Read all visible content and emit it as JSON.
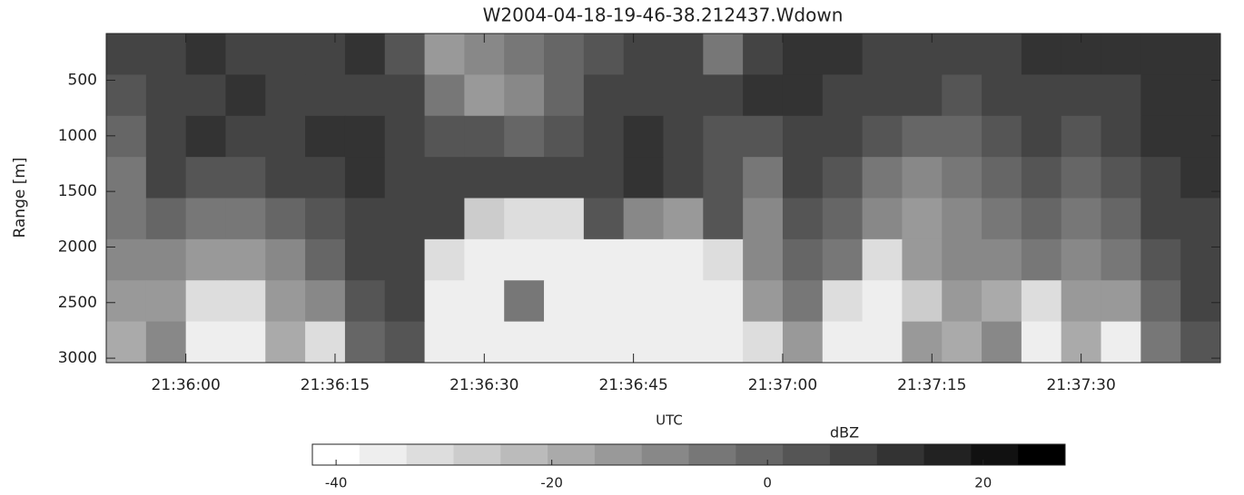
{
  "chart_data": {
    "type": "heatmap",
    "title": "W2004-04-18-19-46-38.212437.Wdown",
    "x_label": "UTC",
    "y_label": "Range [m]",
    "xlim": [
      77752,
      77864
    ],
    "xticks": [
      {
        "value": 77760,
        "label": "21:36:00"
      },
      {
        "value": 77775,
        "label": "21:36:15"
      },
      {
        "value": 77790,
        "label": "21:36:30"
      },
      {
        "value": 77805,
        "label": "21:36:45"
      },
      {
        "value": 77820,
        "label": "21:37:00"
      },
      {
        "value": 77835,
        "label": "21:37:15"
      },
      {
        "value": 77850,
        "label": "21:37:30"
      }
    ],
    "ylim": [
      3040,
      80
    ],
    "yticks": [
      500,
      1000,
      1500,
      2000,
      2500,
      3000
    ],
    "x": [
      77754,
      77758,
      77762,
      77766,
      77770,
      77774,
      77778,
      77782,
      77786,
      77790,
      77794,
      77798,
      77802,
      77806,
      77810,
      77814,
      77818,
      77822,
      77826,
      77830,
      77834,
      77838,
      77842,
      77846,
      77850,
      77854,
      77858,
      77862
    ],
    "y": [
      265,
      635,
      1005,
      1375,
      1745,
      2115,
      2485,
      2855
    ],
    "z": [
      [
        8,
        10,
        12,
        10,
        8,
        10,
        12,
        5,
        -15,
        -10,
        -5,
        0,
        5,
        10,
        8,
        -5,
        10,
        12,
        12,
        10,
        8,
        6,
        10,
        12,
        12,
        12,
        12,
        12
      ],
      [
        5,
        8,
        10,
        12,
        10,
        8,
        10,
        8,
        -5,
        -15,
        -10,
        0,
        8,
        10,
        10,
        8,
        12,
        12,
        10,
        8,
        6,
        5,
        8,
        10,
        10,
        10,
        12,
        12
      ],
      [
        0,
        10,
        12,
        10,
        8,
        12,
        12,
        10,
        5,
        5,
        0,
        5,
        10,
        12,
        10,
        5,
        5,
        10,
        10,
        5,
        0,
        0,
        5,
        10,
        5,
        10,
        12,
        12
      ],
      [
        -5,
        8,
        5,
        5,
        8,
        10,
        12,
        10,
        8,
        10,
        10,
        8,
        10,
        12,
        10,
        5,
        -5,
        8,
        5,
        -5,
        -10,
        -5,
        0,
        5,
        0,
        5,
        10,
        12
      ],
      [
        -5,
        0,
        -5,
        -5,
        0,
        5,
        10,
        10,
        10,
        -25,
        -30,
        -30,
        5,
        -10,
        -15,
        5,
        -10,
        5,
        0,
        -10,
        -15,
        -10,
        -5,
        0,
        -5,
        0,
        8,
        10
      ],
      [
        -10,
        -10,
        -15,
        -15,
        -10,
        0,
        10,
        10,
        -30,
        -35,
        -35,
        -35,
        -35,
        -35,
        -35,
        -30,
        -10,
        0,
        -5,
        -30,
        -15,
        -10,
        -10,
        -5,
        -10,
        -5,
        5,
        10
      ],
      [
        -15,
        -15,
        -30,
        -30,
        -15,
        -10,
        5,
        8,
        -35,
        -35,
        -5,
        -35,
        -35,
        -35,
        -35,
        -35,
        -15,
        -5,
        -30,
        -35,
        -25,
        -15,
        -20,
        -30,
        -15,
        -15,
        0,
        8
      ],
      [
        -20,
        -10,
        -35,
        -35,
        -20,
        -30,
        0,
        5,
        -35,
        -35,
        -35,
        -35,
        -35,
        -35,
        -35,
        -35,
        -30,
        -15,
        -35,
        -35,
        -15,
        -20,
        -10,
        -35,
        -20,
        -35,
        -5,
        5
      ]
    ],
    "colorbar": {
      "label": "dBZ",
      "lim": [
        -42.2,
        27.6
      ],
      "ticks": [
        -40,
        -20,
        0,
        20
      ],
      "steps": 16
    }
  }
}
